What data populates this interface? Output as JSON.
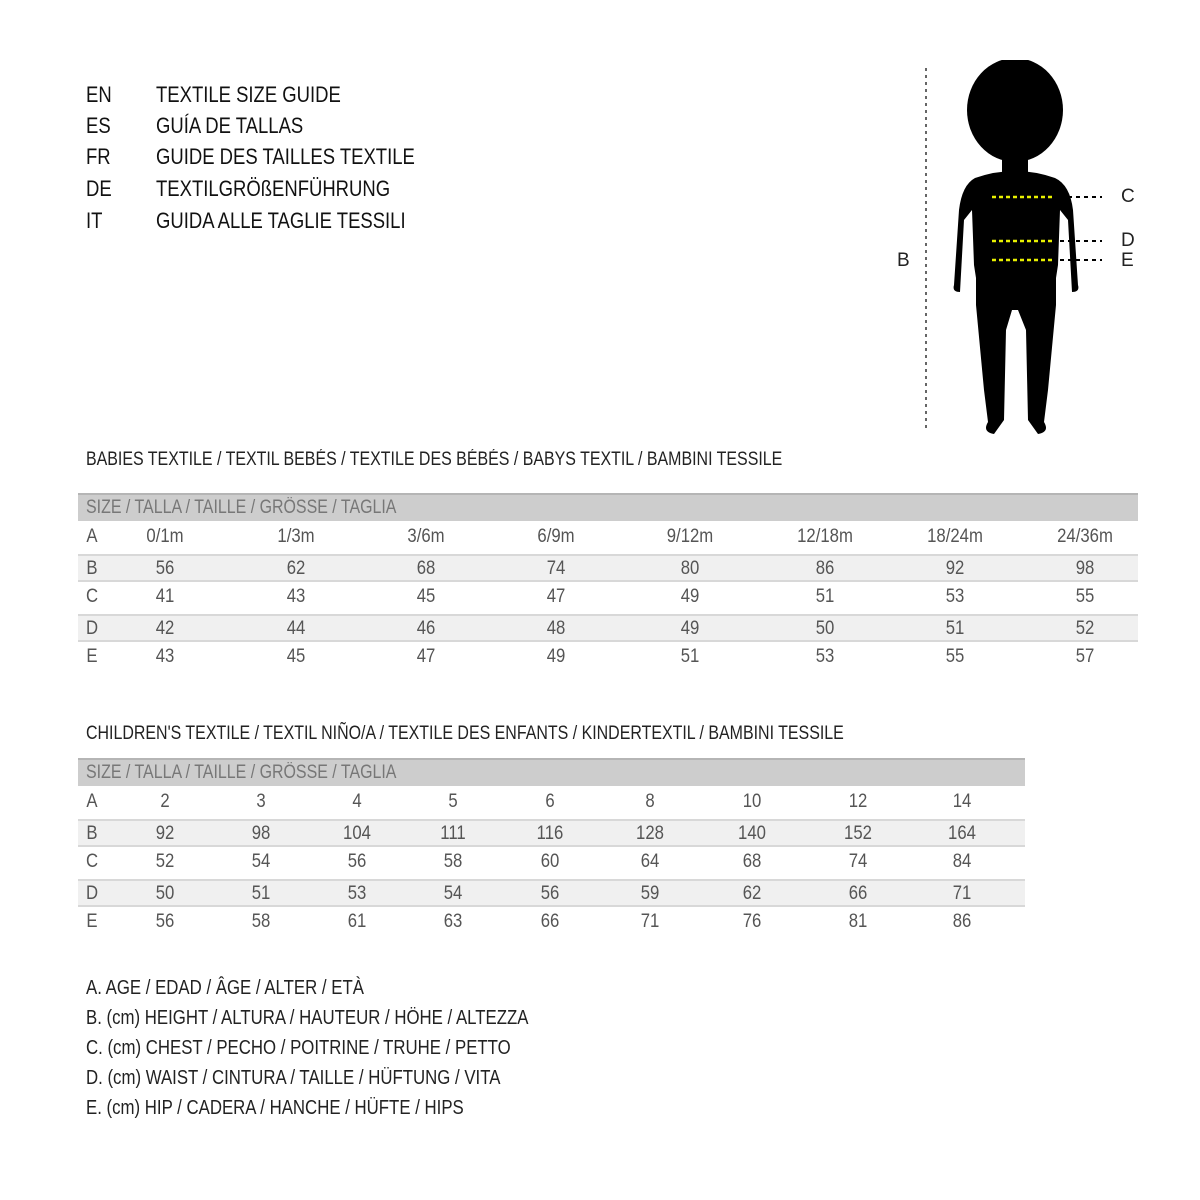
{
  "titles": [
    {
      "lang": "EN",
      "text": "TEXTILE SIZE GUIDE"
    },
    {
      "lang": "ES",
      "text": "GUÍA DE TALLAS"
    },
    {
      "lang": "FR",
      "text": "GUIDE DES TAILLES TEXTILE"
    },
    {
      "lang": "DE",
      "text": "TEXTILGRÖßENFÜHRUNG"
    },
    {
      "lang": "IT",
      "text": "GUIDA ALLE TAGLIE TESSILI"
    }
  ],
  "figure": {
    "labels": {
      "b": "B",
      "c": "C",
      "d": "D",
      "e": "E"
    },
    "colors": {
      "silhouette": "#000000",
      "measure_line": "#e8f000"
    }
  },
  "babies": {
    "title": "BABIES TEXTILE / TEXTIL BEBÉS / TEXTILE DES BÉBÉS / BABYS TEXTIL  / BAMBINI TESSILE",
    "header": "SIZE / TALLA / TAILLE / GRÖSSE / TAGLIA",
    "rows": [
      {
        "label": "A",
        "values": [
          "0/1m",
          "1/3m",
          "3/6m",
          "6/9m",
          "9/12m",
          "12/18m",
          "18/24m",
          "24/36m"
        ]
      },
      {
        "label": "B",
        "values": [
          "56",
          "62",
          "68",
          "74",
          "80",
          "86",
          "92",
          "98"
        ]
      },
      {
        "label": "C",
        "values": [
          "41",
          "43",
          "45",
          "47",
          "49",
          "51",
          "53",
          "55"
        ]
      },
      {
        "label": "D",
        "values": [
          "42",
          "44",
          "46",
          "48",
          "49",
          "50",
          "51",
          "52"
        ]
      },
      {
        "label": "E",
        "values": [
          "43",
          "45",
          "47",
          "49",
          "51",
          "53",
          "55",
          "57"
        ]
      }
    ]
  },
  "children": {
    "title": "CHILDREN'S TEXTILE / TEXTIL NIÑO/A / TEXTILE DES ENFANTS / KINDERTEXTIL / BAMBINI TESSILE",
    "header": "SIZE / TALLA / TAILLE / GRÖSSE / TAGLIA",
    "rows": [
      {
        "label": "A",
        "values": [
          "2",
          "3",
          "4",
          "5",
          "6",
          "8",
          "10",
          "12",
          "14"
        ]
      },
      {
        "label": "B",
        "values": [
          "92",
          "98",
          "104",
          "111",
          "116",
          "128",
          "140",
          "152",
          "164"
        ]
      },
      {
        "label": "C",
        "values": [
          "52",
          "54",
          "56",
          "58",
          "60",
          "64",
          "68",
          "74",
          "84"
        ]
      },
      {
        "label": "D",
        "values": [
          "50",
          "51",
          "53",
          "54",
          "56",
          "59",
          "62",
          "66",
          "71"
        ]
      },
      {
        "label": "E",
        "values": [
          "56",
          "58",
          "61",
          "63",
          "66",
          "71",
          "76",
          "81",
          "86"
        ]
      }
    ]
  },
  "legend": [
    "A. AGE / EDAD / ÂGE / ALTER / ETÀ",
    "B. (cm) HEIGHT / ALTURA / HAUTEUR / HÖHE / ALTEZZA",
    "C. (cm) CHEST / PECHO / POITRINE / TRUHE / PETTO",
    "D. (cm) WAIST / CINTURA / TAILLE / HÜFTUNG / VITA",
    "E. (cm) HIP / CADERA / HANCHE / HÜFTE / HIPS"
  ]
}
